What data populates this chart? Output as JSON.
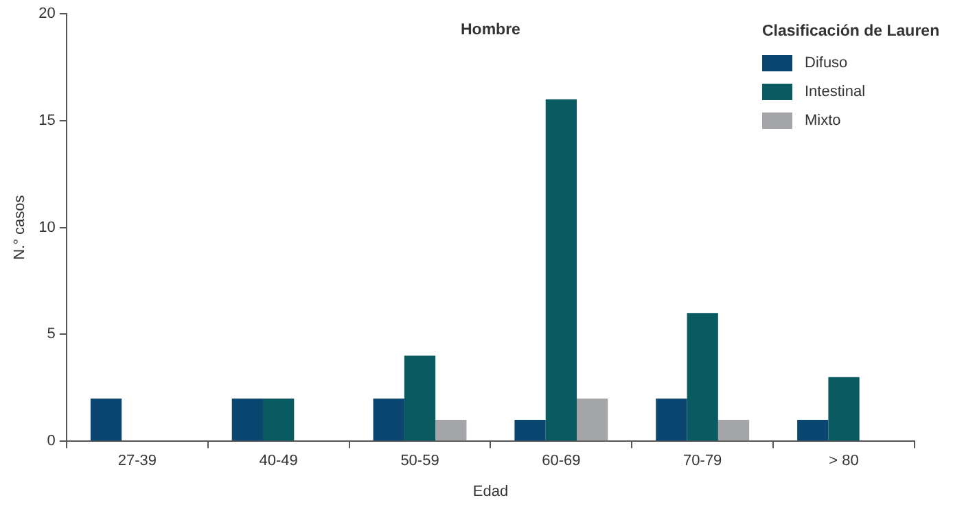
{
  "chart_data": {
    "type": "bar",
    "title": "Hombre",
    "xlabel": "Edad",
    "ylabel": "N.° casos",
    "legend_title": "Clasificación de Lauren",
    "legend": "top right",
    "grid": false,
    "categories": [
      "27-39",
      "40-49",
      "50-59",
      "60-69",
      "70-79",
      "> 80"
    ],
    "series": [
      {
        "name": "Difuso",
        "color": "#0b4670",
        "values": [
          2,
          2,
          2,
          1,
          2,
          1
        ]
      },
      {
        "name": "Intestinal",
        "color": "#0a5a62",
        "values": [
          0,
          2,
          4,
          16,
          6,
          3
        ]
      },
      {
        "name": "Mixto",
        "color": "#a3a5a8",
        "values": [
          0,
          0,
          1,
          2,
          1,
          0
        ]
      }
    ],
    "ylim": [
      0,
      20
    ],
    "yticks": [
      0,
      5,
      10,
      15,
      20
    ]
  }
}
